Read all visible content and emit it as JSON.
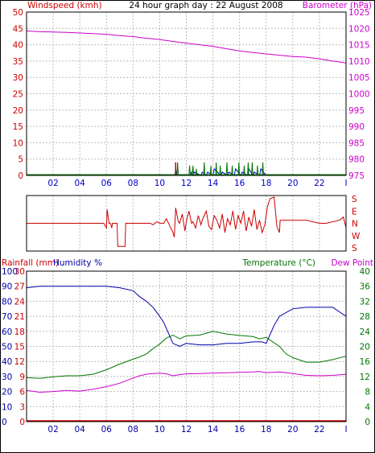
{
  "colors": {
    "wind": "#cc0000",
    "gust": "#007700",
    "windBlue": "#0000cc",
    "baro": "#cc00cc",
    "dir": "#cc0000",
    "rain": "#cc0000",
    "humidity": "#0000aa",
    "temp": "#007700",
    "dew": "#cc00cc",
    "grid": "#bbbbbb",
    "frame": "#000000"
  },
  "chart_data": [
    {
      "type": "line",
      "title": "24 hour graph day : 22 August 2008",
      "ylabel_left": "Windspeed (kmh)",
      "ylabel_right": "Barometer (hPa)",
      "x_ticks": [
        "02",
        "04",
        "06",
        "08",
        "10",
        "12",
        "14",
        "16",
        "18",
        "20",
        "22",
        "I"
      ],
      "y_left_ticks": [
        "0",
        "5",
        "10",
        "15",
        "20",
        "25",
        "30",
        "35",
        "40",
        "45",
        "50"
      ],
      "y_right_ticks": [
        "975",
        "980",
        "985",
        "990",
        "995",
        "1000",
        "1005",
        "1010",
        "1015",
        "1020",
        "1025"
      ],
      "ylim_left": [
        0,
        50
      ],
      "ylim_right": [
        975,
        1025
      ],
      "series": [
        {
          "key": "barometer",
          "axis": "right",
          "x": [
            0,
            1,
            2,
            3,
            4,
            5,
            6,
            7,
            8,
            9,
            10,
            11,
            12,
            13,
            14,
            15,
            16,
            17,
            18,
            19,
            20,
            21,
            22,
            23,
            24
          ],
          "values": [
            1019.2,
            1019.0,
            1018.9,
            1018.8,
            1018.6,
            1018.4,
            1018.2,
            1017.8,
            1017.5,
            1017.0,
            1016.6,
            1016.0,
            1015.5,
            1015.0,
            1014.5,
            1013.8,
            1013.1,
            1012.6,
            1012.2,
            1011.8,
            1011.4,
            1011.2,
            1010.7,
            1010.0,
            1009.4
          ]
        },
        {
          "key": "windspeed",
          "axis": "left",
          "x": [
            0,
            11.15,
            11.2,
            11.3,
            12.3,
            12.4,
            12.5,
            12.6,
            13.1,
            13.2,
            13.5,
            13.6,
            14.0,
            14.1,
            14.6,
            14.7,
            15.1,
            15.2,
            15.6,
            15.7,
            16.1,
            16.2,
            16.6,
            16.7,
            17.0,
            17.1,
            17.5,
            17.6,
            18.0,
            24
          ],
          "values": [
            0,
            0,
            2,
            0,
            0,
            1,
            0,
            1,
            0,
            1,
            0,
            1,
            0,
            2,
            0,
            1,
            0,
            1,
            0,
            2,
            0,
            1,
            0,
            2,
            0,
            1,
            0,
            2,
            0,
            0
          ]
        },
        {
          "key": "gust",
          "axis": "left",
          "x": [
            0,
            11.3,
            11.35,
            11.4,
            12.2,
            12.25,
            12.3,
            12.45,
            12.5,
            12.55,
            12.7,
            12.75,
            12.8,
            13.3,
            13.35,
            13.4,
            13.8,
            13.85,
            13.9,
            14.2,
            14.25,
            14.3,
            14.5,
            14.55,
            14.6,
            15.0,
            15.05,
            15.1,
            15.4,
            15.45,
            15.5,
            15.9,
            15.95,
            16.0,
            16.3,
            16.35,
            16.4,
            16.6,
            16.65,
            16.7,
            16.9,
            16.95,
            17.0,
            17.3,
            17.35,
            17.4,
            17.7,
            17.75,
            17.8,
            24
          ],
          "values": [
            0,
            0,
            4,
            0,
            0,
            3,
            0,
            0,
            3,
            0,
            0,
            2,
            0,
            0,
            4,
            0,
            0,
            3,
            0,
            0,
            4,
            0,
            0,
            3,
            0,
            0,
            4,
            0,
            0,
            3,
            0,
            0,
            4,
            0,
            0,
            3,
            0,
            0,
            4,
            0,
            0,
            4,
            0,
            0,
            3,
            0,
            0,
            4,
            0,
            0
          ]
        }
      ]
    },
    {
      "type": "line",
      "key": "wind_direction",
      "y_right_ticks": [
        "S",
        "E",
        "N",
        "W",
        "S"
      ],
      "series": [
        {
          "key": "direction",
          "x": [
            0,
            5.8,
            6.0,
            6.05,
            6.2,
            6.3,
            6.4,
            6.45,
            6.5,
            6.8,
            6.85,
            7.4,
            7.45,
            7.7,
            7.75,
            8.0,
            8.3,
            9.3,
            9.5,
            9.8,
            10.0,
            10.3,
            10.5,
            11.0,
            11.1,
            11.2,
            11.4,
            11.5,
            11.7,
            11.9,
            12.0,
            12.2,
            12.4,
            12.5,
            12.7,
            12.9,
            13.1,
            13.2,
            13.5,
            13.7,
            13.9,
            14.1,
            14.3,
            14.5,
            14.7,
            14.9,
            15.1,
            15.3,
            15.5,
            15.7,
            15.9,
            16.1,
            16.3,
            16.5,
            16.7,
            16.9,
            17.1,
            17.3,
            17.5,
            17.7,
            17.9,
            18.1,
            18.3,
            18.6,
            18.8,
            19.0,
            19.05,
            21.0,
            22.0,
            22.5,
            23.5,
            23.8,
            24
          ],
          "values": [
            180,
            180,
            150,
            270,
            180,
            180,
            150,
            180,
            180,
            180,
            30,
            30,
            180,
            180,
            180,
            180,
            180,
            180,
            170,
            190,
            180,
            180,
            210,
            120,
            90,
            280,
            190,
            180,
            240,
            130,
            190,
            260,
            180,
            190,
            150,
            230,
            170,
            200,
            260,
            160,
            140,
            230,
            200,
            150,
            240,
            120,
            210,
            170,
            260,
            140,
            230,
            180,
            260,
            130,
            220,
            160,
            270,
            140,
            200,
            120,
            170,
            290,
            340,
            350,
            160,
            120,
            200,
            200,
            180,
            180,
            200,
            220,
            150
          ]
        }
      ]
    },
    {
      "type": "line",
      "ylabel_left": "Rainfall (mm)",
      "ylabel_left2": "Humidity %",
      "ylabel_right": "Temperature (°C)",
      "ylabel_right2": "Dew Point",
      "x_ticks": [
        "02",
        "04",
        "06",
        "08",
        "10",
        "12",
        "14",
        "16",
        "18",
        "20",
        "22",
        "I"
      ],
      "y_rain_ticks": [
        "0",
        "3",
        "6",
        "9",
        "12",
        "15",
        "18",
        "21",
        "24",
        "27",
        "30"
      ],
      "y_hum_ticks": [
        "0",
        "10",
        "20",
        "30",
        "40",
        "50",
        "60",
        "70",
        "80",
        "90",
        "100"
      ],
      "y_temp_ticks": [
        "0",
        "4",
        "8",
        "12",
        "16",
        "20",
        "24",
        "28",
        "32",
        "36",
        "40"
      ],
      "ylim_rain": [
        0,
        30
      ],
      "ylim_hum": [
        0,
        100
      ],
      "ylim_temp": [
        0,
        40
      ],
      "series": [
        {
          "key": "humidity",
          "axis": "hum",
          "x": [
            0,
            1,
            2,
            3,
            4,
            5,
            6,
            7,
            8,
            8.5,
            9,
            9.5,
            10,
            10.3,
            10.6,
            11.0,
            11.5,
            12,
            13,
            14,
            15,
            16,
            17,
            17.7,
            18,
            18.3,
            18.6,
            19,
            20,
            21,
            22,
            23,
            23.5,
            24
          ],
          "values": [
            89,
            90,
            90,
            90,
            90,
            90,
            90,
            89,
            87,
            83,
            80,
            76,
            70,
            66,
            60,
            52,
            50,
            52,
            51,
            51,
            52,
            52,
            53,
            53,
            52,
            58,
            64,
            70,
            75,
            76,
            76,
            76,
            73,
            70
          ]
        },
        {
          "key": "temperature",
          "axis": "temp",
          "x": [
            0,
            1,
            2,
            3,
            4,
            5,
            6,
            7,
            8,
            8.5,
            9,
            9.5,
            10,
            10.5,
            11,
            11.5,
            12,
            13,
            14,
            15,
            16,
            17,
            17.5,
            18,
            18.5,
            19,
            19.5,
            20,
            21,
            22,
            23,
            24
          ],
          "values": [
            11.7,
            11.5,
            11.9,
            12.2,
            12.2,
            12.6,
            13.8,
            15.3,
            16.6,
            17.2,
            18.0,
            19.4,
            20.6,
            22.2,
            23.0,
            22.0,
            22.8,
            23.0,
            24.0,
            23.3,
            22.9,
            22.6,
            22.0,
            22.4,
            21.2,
            20.0,
            18.0,
            17.0,
            15.8,
            15.8,
            16.5,
            17.4
          ]
        },
        {
          "key": "dewpoint",
          "axis": "temp",
          "x": [
            0,
            1,
            2,
            3,
            4,
            5,
            6,
            7,
            8,
            8.5,
            9,
            9.5,
            10,
            10.5,
            11,
            11.5,
            12,
            13,
            14,
            15,
            16,
            17,
            17.5,
            18,
            19,
            20,
            21,
            22,
            23,
            24
          ],
          "values": [
            8.3,
            7.8,
            8.0,
            8.3,
            8.1,
            8.6,
            9.3,
            10.2,
            11.6,
            12.2,
            12.6,
            12.8,
            12.9,
            12.7,
            12.2,
            12.5,
            12.7,
            12.8,
            12.9,
            13.0,
            13.1,
            13.2,
            13.3,
            13.0,
            13.2,
            12.8,
            12.3,
            12.2,
            12.3,
            12.6
          ]
        },
        {
          "key": "rainfall",
          "axis": "rain",
          "x": [
            0,
            24
          ],
          "values": [
            0,
            0
          ]
        }
      ]
    }
  ]
}
